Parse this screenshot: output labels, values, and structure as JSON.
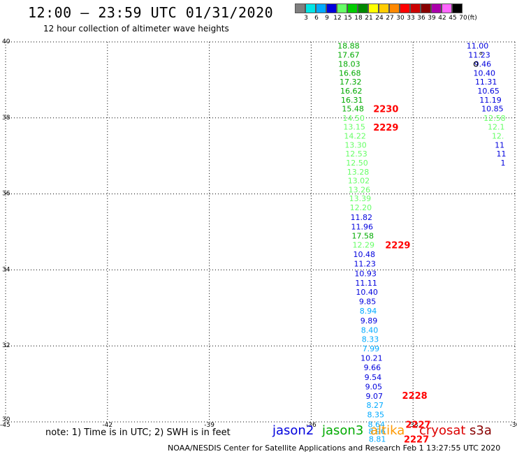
{
  "title": "12:00 – 23:59 UTC 01/31/2020",
  "subtitle": "12 hour collection of altimeter wave heights",
  "color_scale": {
    "labels": [
      "3",
      "6",
      "9",
      "12",
      "15",
      "18",
      "21",
      "24",
      "27",
      "30",
      "33",
      "36",
      "39",
      "42",
      "45",
      "70"
    ],
    "unit": "(ft)",
    "colors": [
      "#7f7f7f",
      "#00e5e5",
      "#00aaff",
      "#0000dd",
      "#66ff66",
      "#00cc00",
      "#008800",
      "#ffff00",
      "#ffcc00",
      "#ff8800",
      "#ff0000",
      "#cc0000",
      "#880000",
      "#aa00aa",
      "#ff66ff",
      "#000000"
    ]
  },
  "note": "note: 1) Time is in UTC; 2) SWH is in feet",
  "legend": [
    {
      "name": "jason2",
      "color": "#0000dd"
    },
    {
      "name": "jason3",
      "color": "#00aa00"
    },
    {
      "name": "altika",
      "color": "#ff9900"
    },
    {
      "name": "cryosat",
      "color": "#dd0000"
    },
    {
      "name": "s3a",
      "color": "#880000"
    }
  ],
  "footer": "NOAA/NESDIS Center for Satellite Applications and Research    Feb  1 13:27:55 UTC 2020",
  "chart_data": {
    "type": "scatter",
    "xlim": [
      -45,
      -30
    ],
    "ylim": [
      30,
      40
    ],
    "x_ticks": [
      "-45",
      "-42",
      "-39",
      "-36",
      "-33",
      "-30"
    ],
    "y_ticks": [
      "40",
      "38",
      "36",
      "34",
      "32",
      "30"
    ],
    "grid": true,
    "wave_heights": [
      {
        "value": "18.88",
        "lon": -34.9,
        "lat": 39.9,
        "color": "#00aa00"
      },
      {
        "value": "17.67",
        "lon": -34.9,
        "lat": 39.66,
        "color": "#00aa00"
      },
      {
        "value": "18.03",
        "lon": -34.88,
        "lat": 39.42,
        "color": "#00aa00"
      },
      {
        "value": "16.68",
        "lon": -34.86,
        "lat": 39.18,
        "color": "#00aa00"
      },
      {
        "value": "17.32",
        "lon": -34.84,
        "lat": 38.95,
        "color": "#00aa00"
      },
      {
        "value": "16.62",
        "lon": -34.82,
        "lat": 38.71,
        "color": "#00aa00"
      },
      {
        "value": "16.31",
        "lon": -34.8,
        "lat": 38.47,
        "color": "#00aa00"
      },
      {
        "value": "15.48",
        "lon": -34.77,
        "lat": 38.24,
        "color": "#00aa00"
      },
      {
        "value": "14.50",
        "lon": -34.75,
        "lat": 38.0,
        "color": "#66ff66"
      },
      {
        "value": "13.15",
        "lon": -34.73,
        "lat": 37.77,
        "color": "#66ff66"
      },
      {
        "value": "14.22",
        "lon": -34.71,
        "lat": 37.53,
        "color": "#66ff66"
      },
      {
        "value": "13.30",
        "lon": -34.69,
        "lat": 37.29,
        "color": "#66ff66"
      },
      {
        "value": "12.53",
        "lon": -34.67,
        "lat": 37.06,
        "color": "#66ff66"
      },
      {
        "value": "12.50",
        "lon": -34.65,
        "lat": 36.82,
        "color": "#66ff66"
      },
      {
        "value": "13.28",
        "lon": -34.62,
        "lat": 36.58,
        "color": "#66ff66"
      },
      {
        "value": "13.02",
        "lon": -34.6,
        "lat": 36.35,
        "color": "#66ff66"
      },
      {
        "value": "13.26",
        "lon": -34.58,
        "lat": 36.11,
        "color": "#66ff66"
      },
      {
        "value": "13.39",
        "lon": -34.56,
        "lat": 35.88,
        "color": "#66ff66"
      },
      {
        "value": "12.20",
        "lon": -34.54,
        "lat": 35.64,
        "color": "#66ff66"
      },
      {
        "value": "11.82",
        "lon": -34.52,
        "lat": 35.39,
        "color": "#0000dd"
      },
      {
        "value": "11.96",
        "lon": -34.5,
        "lat": 35.14,
        "color": "#0000dd"
      },
      {
        "value": "17.58",
        "lon": -34.48,
        "lat": 34.9,
        "color": "#00aa00"
      },
      {
        "value": "12.29",
        "lon": -34.46,
        "lat": 34.66,
        "color": "#66ff66"
      },
      {
        "value": "10.48",
        "lon": -34.44,
        "lat": 34.41,
        "color": "#0000dd"
      },
      {
        "value": "11.23",
        "lon": -34.42,
        "lat": 34.16,
        "color": "#0000dd"
      },
      {
        "value": "10.93",
        "lon": -34.4,
        "lat": 33.91,
        "color": "#0000dd"
      },
      {
        "value": "11.11",
        "lon": -34.38,
        "lat": 33.66,
        "color": "#0000dd"
      },
      {
        "value": "10.40",
        "lon": -34.36,
        "lat": 33.42,
        "color": "#0000dd"
      },
      {
        "value": "9.85",
        "lon": -34.34,
        "lat": 33.17,
        "color": "#0000dd"
      },
      {
        "value": "8.94",
        "lon": -34.32,
        "lat": 32.92,
        "color": "#00aaff"
      },
      {
        "value": "9.89",
        "lon": -34.3,
        "lat": 32.67,
        "color": "#0000dd"
      },
      {
        "value": "8.40",
        "lon": -34.28,
        "lat": 32.42,
        "color": "#00aaff"
      },
      {
        "value": "8.33",
        "lon": -34.26,
        "lat": 32.18,
        "color": "#00aaff"
      },
      {
        "value": "7.99",
        "lon": -34.24,
        "lat": 31.93,
        "color": "#00aaff"
      },
      {
        "value": "10.21",
        "lon": -34.22,
        "lat": 31.68,
        "color": "#0000dd"
      },
      {
        "value": "9.66",
        "lon": -34.2,
        "lat": 31.43,
        "color": "#0000dd"
      },
      {
        "value": "9.54",
        "lon": -34.18,
        "lat": 31.18,
        "color": "#0000dd"
      },
      {
        "value": "9.05",
        "lon": -34.16,
        "lat": 30.93,
        "color": "#0000dd"
      },
      {
        "value": "9.07",
        "lon": -34.14,
        "lat": 30.68,
        "color": "#0000dd"
      },
      {
        "value": "8.27",
        "lon": -34.12,
        "lat": 30.44,
        "color": "#00aaff"
      },
      {
        "value": "8.35",
        "lon": -34.1,
        "lat": 30.19,
        "color": "#00aaff"
      },
      {
        "value": "8.64",
        "lon": -34.08,
        "lat": 29.94,
        "color": "#00aaff"
      },
      {
        "value": "8.96",
        "lon": -34.06,
        "lat": 29.75,
        "color": "#00aaff"
      },
      {
        "value": "8.81",
        "lon": -34.05,
        "lat": 29.55,
        "color": "#00aaff"
      },
      {
        "value": "11.00",
        "lon": -31.1,
        "lat": 39.9,
        "color": "#0000dd"
      },
      {
        "value": "11.23",
        "lon": -31.05,
        "lat": 39.66,
        "color": "#0000dd"
      },
      {
        "value": "9.46",
        "lon": -30.95,
        "lat": 39.42,
        "color": "#0000dd"
      },
      {
        "value": "10.40",
        "lon": -30.9,
        "lat": 39.18,
        "color": "#0000dd"
      },
      {
        "value": "11.31",
        "lon": -30.85,
        "lat": 38.95,
        "color": "#0000dd"
      },
      {
        "value": "10.65",
        "lon": -30.78,
        "lat": 38.71,
        "color": "#0000dd"
      },
      {
        "value": "11.19",
        "lon": -30.72,
        "lat": 38.47,
        "color": "#0000dd"
      },
      {
        "value": "10.85",
        "lon": -30.66,
        "lat": 38.24,
        "color": "#0000dd"
      },
      {
        "value": "12.58",
        "lon": -30.6,
        "lat": 38.0,
        "color": "#66ff66"
      },
      {
        "value": "12.1",
        "lon": -30.55,
        "lat": 37.77,
        "color": "#66ff66"
      },
      {
        "value": "12.",
        "lon": -30.5,
        "lat": 37.53,
        "color": "#66ff66"
      },
      {
        "value": "11",
        "lon": -30.45,
        "lat": 37.29,
        "color": "#0000dd"
      },
      {
        "value": "11",
        "lon": -30.4,
        "lat": 37.06,
        "color": "#0000dd"
      },
      {
        "value": "1",
        "lon": -30.35,
        "lat": 36.82,
        "color": "#0000dd"
      }
    ],
    "time_labels": [
      {
        "value": "2230",
        "lon": -33.8,
        "lat": 38.24,
        "color": "#ff0000"
      },
      {
        "value": "2229",
        "lon": -33.8,
        "lat": 37.76,
        "color": "#ff0000"
      },
      {
        "value": "2229",
        "lon": -33.45,
        "lat": 34.66,
        "color": "#ff0000"
      },
      {
        "value": "2228",
        "lon": -32.95,
        "lat": 30.7,
        "color": "#ff0000"
      },
      {
        "value": "2227",
        "lon": -32.85,
        "lat": 29.94,
        "color": "#ff0000"
      },
      {
        "value": "2227",
        "lon": -32.9,
        "lat": 29.55,
        "color": "#ff0000"
      }
    ],
    "island_marks": [
      {
        "glyph": "o",
        "lon": -31.15,
        "lat": 39.35
      },
      {
        "glyph": "°",
        "lon": -31.0,
        "lat": 39.55
      }
    ]
  }
}
